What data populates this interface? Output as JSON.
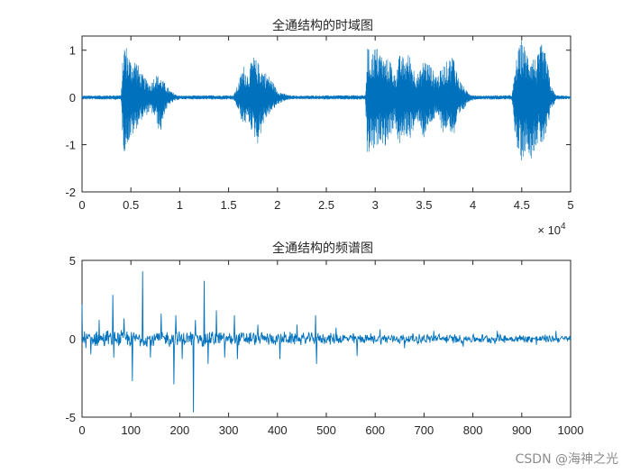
{
  "chart_data": [
    {
      "type": "line",
      "title": "全通结构的时域图",
      "xlabel": "",
      "ylabel": "",
      "xlim": [
        0,
        50000
      ],
      "ylim": [
        -2,
        1.3
      ],
      "x_ticks": [
        0,
        5000,
        10000,
        15000,
        20000,
        25000,
        30000,
        35000,
        40000,
        45000,
        50000
      ],
      "x_tick_labels": [
        "0",
        "0.5",
        "1",
        "1.5",
        "2",
        "2.5",
        "3",
        "3.5",
        "4",
        "4.5",
        "5"
      ],
      "y_ticks": [
        -2,
        -1,
        0,
        1
      ],
      "y_tick_labels": [
        "-2",
        "-1",
        "0",
        "1"
      ],
      "x_exponent_label": "× 10",
      "x_exponent_power": "4",
      "color": "#0072BD",
      "grid": false,
      "series_envelope": {
        "x": [
          0,
          4000,
          4200,
          4400,
          4600,
          5000,
          5500,
          6000,
          6500,
          7000,
          7500,
          8000,
          8500,
          9000,
          9500,
          10000,
          15500,
          16000,
          16500,
          17000,
          17500,
          18000,
          18500,
          19000,
          19500,
          20000,
          20500,
          21000,
          21500,
          22000,
          29000,
          29200,
          29500,
          30000,
          30500,
          31000,
          31500,
          32000,
          32500,
          33000,
          33500,
          34000,
          34500,
          35000,
          35500,
          36000,
          36500,
          37000,
          37500,
          38000,
          38500,
          39000,
          39500,
          40000,
          40500,
          44000,
          44500,
          45000,
          45500,
          46000,
          46500,
          47000,
          47500,
          48000,
          48500,
          50000
        ],
        "upper": [
          0.04,
          0.05,
          0.95,
          1.25,
          1.05,
          0.8,
          0.85,
          0.55,
          0.4,
          0.3,
          0.5,
          0.45,
          0.3,
          0.15,
          0.08,
          0.04,
          0.05,
          0.3,
          0.7,
          0.5,
          0.9,
          0.75,
          0.6,
          0.5,
          0.35,
          0.15,
          0.1,
          0.06,
          0.04,
          0.04,
          0.05,
          1.15,
          0.9,
          1.1,
          1.0,
          0.8,
          0.85,
          0.5,
          0.9,
          0.85,
          0.95,
          0.6,
          0.5,
          0.85,
          0.75,
          0.55,
          0.5,
          0.7,
          0.8,
          0.95,
          0.45,
          0.25,
          0.1,
          0.06,
          0.04,
          0.05,
          0.9,
          1.25,
          1.0,
          0.95,
          0.8,
          1.15,
          0.9,
          0.25,
          0.05,
          0.03
        ],
        "lower": [
          -0.04,
          -0.05,
          -1.05,
          -1.2,
          -1.0,
          -0.9,
          -0.7,
          -0.5,
          -0.4,
          -0.3,
          -0.45,
          -0.8,
          -0.3,
          -0.15,
          -0.08,
          -0.04,
          -0.05,
          -0.3,
          -0.6,
          -0.5,
          -0.8,
          -1.0,
          -0.6,
          -0.4,
          -0.3,
          -0.15,
          -0.1,
          -0.06,
          -0.04,
          -0.04,
          -0.05,
          -1.45,
          -1.1,
          -1.2,
          -0.9,
          -1.05,
          -0.85,
          -0.6,
          -1.1,
          -0.8,
          -0.9,
          -0.7,
          -0.5,
          -0.95,
          -0.6,
          -0.5,
          -0.45,
          -0.8,
          -0.6,
          -0.9,
          -0.5,
          -0.3,
          -0.1,
          -0.06,
          -0.04,
          -0.05,
          -1.2,
          -1.35,
          -1.1,
          -1.3,
          -1.0,
          -1.05,
          -0.9,
          -0.3,
          -0.05,
          -0.03
        ]
      }
    },
    {
      "type": "line",
      "title": "全通结构的频谱图",
      "xlabel": "",
      "ylabel": "",
      "xlim": [
        0,
        1000
      ],
      "ylim": [
        -5,
        5
      ],
      "x_ticks": [
        0,
        100,
        200,
        300,
        400,
        500,
        600,
        700,
        800,
        900,
        1000
      ],
      "x_tick_labels": [
        "0",
        "100",
        "200",
        "300",
        "400",
        "500",
        "600",
        "700",
        "800",
        "900",
        "1000"
      ],
      "y_ticks": [
        -5,
        0,
        5
      ],
      "y_tick_labels": [
        "-5",
        "0",
        "5"
      ],
      "color": "#0072BD",
      "grid": false,
      "spikes": [
        {
          "x": 0,
          "y": 2.2
        },
        {
          "x": 18,
          "y": -1.0
        },
        {
          "x": 35,
          "y": 1.2
        },
        {
          "x": 63,
          "y": 2.8
        },
        {
          "x": 65,
          "y": -1.2
        },
        {
          "x": 86,
          "y": 1.3
        },
        {
          "x": 103,
          "y": -2.7
        },
        {
          "x": 124,
          "y": 4.3
        },
        {
          "x": 140,
          "y": -1.2
        },
        {
          "x": 162,
          "y": 1.6
        },
        {
          "x": 188,
          "y": -2.9
        },
        {
          "x": 192,
          "y": 1.5
        },
        {
          "x": 205,
          "y": -1.3
        },
        {
          "x": 228,
          "y": -4.7
        },
        {
          "x": 232,
          "y": 1.2
        },
        {
          "x": 250,
          "y": 3.7
        },
        {
          "x": 258,
          "y": -1.6
        },
        {
          "x": 275,
          "y": 1.8
        },
        {
          "x": 292,
          "y": -1.2
        },
        {
          "x": 312,
          "y": 1.5
        },
        {
          "x": 318,
          "y": -1.3
        },
        {
          "x": 360,
          "y": 0.9
        },
        {
          "x": 405,
          "y": -1.3
        },
        {
          "x": 440,
          "y": 0.9
        },
        {
          "x": 478,
          "y": 1.5
        },
        {
          "x": 480,
          "y": -1.6
        },
        {
          "x": 520,
          "y": 0.7
        },
        {
          "x": 563,
          "y": -1.1
        },
        {
          "x": 610,
          "y": 0.6
        },
        {
          "x": 660,
          "y": -0.6
        },
        {
          "x": 720,
          "y": 0.5
        },
        {
          "x": 780,
          "y": -0.5
        },
        {
          "x": 850,
          "y": 0.5
        },
        {
          "x": 930,
          "y": -0.4
        },
        {
          "x": 970,
          "y": 0.5
        }
      ],
      "noise_amplitude": [
        {
          "x": 0,
          "a": 0.45
        },
        {
          "x": 300,
          "a": 0.4
        },
        {
          "x": 500,
          "a": 0.3
        },
        {
          "x": 1000,
          "a": 0.2
        }
      ]
    }
  ],
  "watermark": "CSDN @海神之光"
}
